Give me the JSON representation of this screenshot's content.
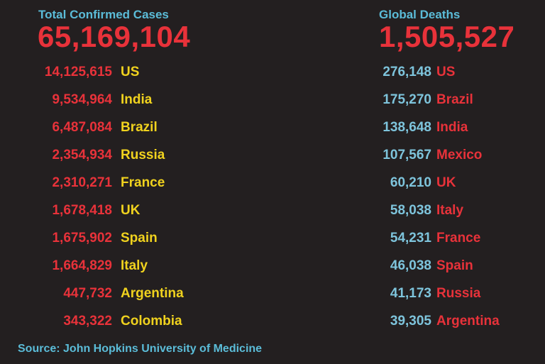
{
  "colors": {
    "background": "#231f20",
    "title": "#5bbcd8",
    "red": "#e8323a",
    "yellow": "#f0d21e",
    "blue": "#7ec4dc"
  },
  "cases": {
    "title": "Total Confirmed Cases",
    "total": "65,169,104",
    "rows": [
      {
        "value": "14,125,615",
        "country": "US"
      },
      {
        "value": "9,534,964",
        "country": "India"
      },
      {
        "value": "6,487,084",
        "country": "Brazil"
      },
      {
        "value": "2,354,934",
        "country": "Russia"
      },
      {
        "value": "2,310,271",
        "country": "France"
      },
      {
        "value": "1,678,418",
        "country": "UK"
      },
      {
        "value": "1,675,902",
        "country": "Spain"
      },
      {
        "value": "1,664,829",
        "country": "Italy"
      },
      {
        "value": "447,732",
        "country": "Argentina"
      },
      {
        "value": "343,322",
        "country": "Colombia"
      }
    ]
  },
  "deaths": {
    "title": "Global Deaths",
    "total": "1,505,527",
    "rows": [
      {
        "value": "276,148",
        "country": "US"
      },
      {
        "value": "175,270",
        "country": "Brazil"
      },
      {
        "value": "138,648",
        "country": "India"
      },
      {
        "value": "107,567",
        "country": "Mexico"
      },
      {
        "value": "60,210",
        "country": "UK"
      },
      {
        "value": "58,038",
        "country": "Italy"
      },
      {
        "value": "54,231",
        "country": "France"
      },
      {
        "value": "46,038",
        "country": "Spain"
      },
      {
        "value": "41,173",
        "country": "Russia"
      },
      {
        "value": "39,305",
        "country": "Argentina"
      }
    ]
  },
  "source": "Source: John Hopkins University of Medicine"
}
